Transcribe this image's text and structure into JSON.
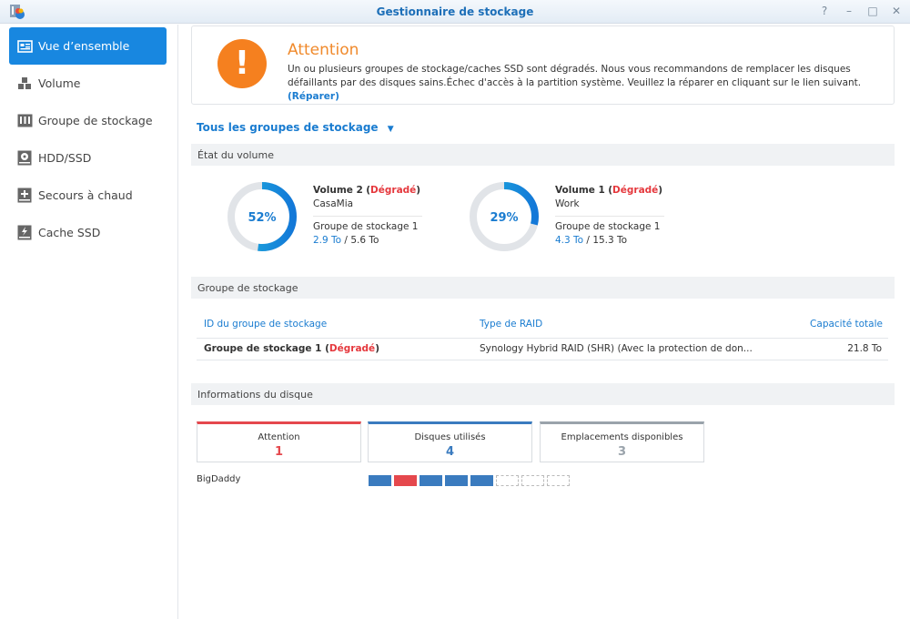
{
  "window": {
    "title": "Gestionnaire de stockage",
    "controls": [
      "help-icon",
      "minimize-icon",
      "maximize-icon",
      "close-icon"
    ]
  },
  "sidebar": {
    "items": [
      {
        "label": "Vue d’ensemble",
        "icon": "overview-icon",
        "active": true
      },
      {
        "label": "Volume",
        "icon": "cubes-icon"
      },
      {
        "label": "Groupe de stockage",
        "icon": "storage-pool-icon"
      },
      {
        "label": "HDD/SSD",
        "icon": "hdd-icon"
      },
      {
        "label": "Secours à chaud",
        "icon": "hot-spare-icon"
      },
      {
        "label": "Cache SSD",
        "icon": "ssd-cache-icon"
      }
    ]
  },
  "alert": {
    "title": "Attention",
    "message": "Un ou plusieurs groupes de stockage/caches SSD sont dégradés. Nous vous recommandons de remplacer les disques défaillants par des disques sains.Échec d'accès à la partition système. Veuillez la réparer en cliquant sur le lien suivant.",
    "link": "(Réparer)"
  },
  "filter": {
    "label": "Tous les groupes de stockage"
  },
  "volume_section": {
    "title": "État du volume",
    "volumes": [
      {
        "percent": 52,
        "percent_label": "52%",
        "name": "Volume 2",
        "status": "Dégradé",
        "desc": "CasaMia",
        "pool": "Groupe de stockage 1",
        "used": "2.9 To",
        "total": "5.6 To"
      },
      {
        "percent": 29,
        "percent_label": "29%",
        "name": "Volume 1",
        "status": "Dégradé",
        "desc": "Work",
        "pool": "Groupe de stockage 1",
        "used": "4.3 To",
        "total": "15.3 To"
      }
    ]
  },
  "pool_section": {
    "title": "Groupe de stockage",
    "columns": [
      "ID du groupe de stockage",
      "Type de RAID",
      "Capacité totale"
    ],
    "rows": [
      {
        "id": "Groupe de stockage 1",
        "status": "Dégradé",
        "raid": "Synology Hybrid RAID (SHR) (Avec la protection de don...",
        "capacity": "21.8 To"
      }
    ]
  },
  "disk_section": {
    "title": "Informations du disque",
    "cards": [
      {
        "label": "Attention",
        "value": "1",
        "color": "#e5484d"
      },
      {
        "label": "Disques utilisés",
        "value": "4",
        "color": "#3a7bbf"
      },
      {
        "label": "Emplacements disponibles",
        "value": "3",
        "color": "#9aa3ab"
      }
    ],
    "device": "BigDaddy",
    "slots": [
      "used",
      "warning",
      "used",
      "used",
      "used",
      "empty",
      "empty",
      "empty"
    ]
  },
  "colors": {
    "accent": "#1887e0",
    "warning": "#f5801f",
    "error": "#e5383d"
  }
}
